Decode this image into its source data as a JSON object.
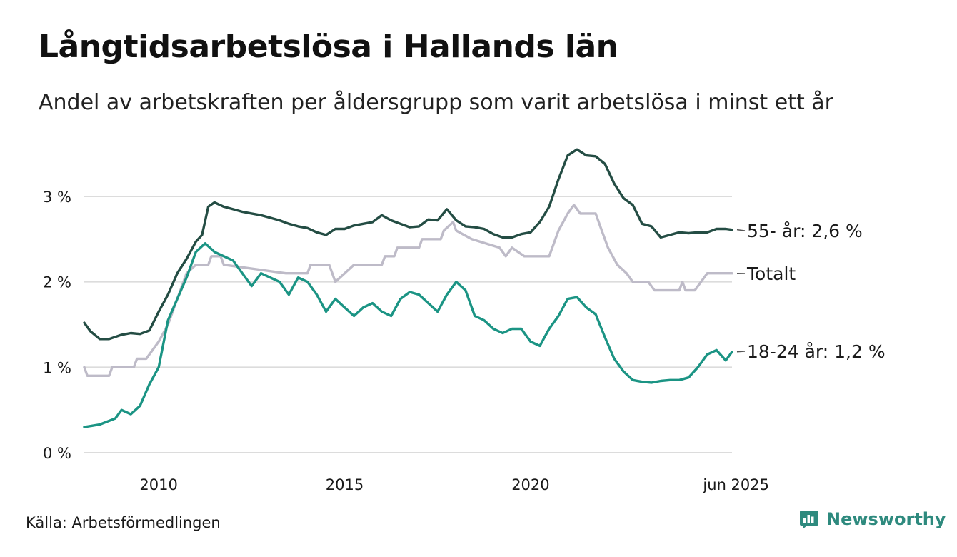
{
  "header": {
    "title": "Långtidsarbetslösa i Hallands län",
    "subtitle": "Andel av arbetskraften per åldersgrupp som varit arbetslösa i minst ett år"
  },
  "footer": {
    "source": "Källa: Arbetsförmedlingen",
    "brand": "Newsworthy",
    "brand_icon": "bar-chart-logo-icon"
  },
  "colors": {
    "s55": "#244d44",
    "total": "#bebbc8",
    "s1824": "#1b9484",
    "grid": "#dcdcdc",
    "brand": "#2e8a7e"
  },
  "chart_data": {
    "type": "line",
    "title": "Långtidsarbetslösa i Hallands län",
    "subtitle": "Andel av arbetskraften per åldersgrupp som varit arbetslösa i minst ett år",
    "xlabel": "",
    "ylabel": "",
    "x_range": [
      "2008-01",
      "2025-06"
    ],
    "x_ticks": [
      {
        "x": "2010-01",
        "label": "2010"
      },
      {
        "x": "2015-01",
        "label": "2015"
      },
      {
        "x": "2020-01",
        "label": "2020"
      },
      {
        "x": "2025-06",
        "label": "jun 2025"
      }
    ],
    "y_range": [
      0,
      3.8
    ],
    "y_ticks": [
      {
        "value": 0,
        "label": "0 %"
      },
      {
        "value": 1,
        "label": "1 %"
      },
      {
        "value": 2,
        "label": "2 %"
      },
      {
        "value": 3,
        "label": "3 %"
      }
    ],
    "grid": true,
    "series": [
      {
        "name": "55- år",
        "color": "#244d44",
        "end_label": "55- år: 2,6 %",
        "points": [
          [
            "2008-01",
            1.52
          ],
          [
            "2008-03",
            1.42
          ],
          [
            "2008-06",
            1.33
          ],
          [
            "2008-09",
            1.33
          ],
          [
            "2009-01",
            1.38
          ],
          [
            "2009-04",
            1.4
          ],
          [
            "2009-07",
            1.39
          ],
          [
            "2009-10",
            1.43
          ],
          [
            "2010-01",
            1.65
          ],
          [
            "2010-04",
            1.85
          ],
          [
            "2010-07",
            2.1
          ],
          [
            "2010-10",
            2.27
          ],
          [
            "2011-01",
            2.47
          ],
          [
            "2011-03",
            2.55
          ],
          [
            "2011-05",
            2.88
          ],
          [
            "2011-07",
            2.93
          ],
          [
            "2011-10",
            2.88
          ],
          [
            "2012-01",
            2.85
          ],
          [
            "2012-04",
            2.82
          ],
          [
            "2012-07",
            2.8
          ],
          [
            "2012-10",
            2.78
          ],
          [
            "2013-01",
            2.75
          ],
          [
            "2013-04",
            2.72
          ],
          [
            "2013-07",
            2.68
          ],
          [
            "2013-10",
            2.65
          ],
          [
            "2014-01",
            2.63
          ],
          [
            "2014-04",
            2.58
          ],
          [
            "2014-07",
            2.55
          ],
          [
            "2014-10",
            2.62
          ],
          [
            "2015-01",
            2.62
          ],
          [
            "2015-04",
            2.66
          ],
          [
            "2015-07",
            2.68
          ],
          [
            "2015-10",
            2.7
          ],
          [
            "2016-01",
            2.78
          ],
          [
            "2016-04",
            2.72
          ],
          [
            "2016-07",
            2.68
          ],
          [
            "2016-10",
            2.64
          ],
          [
            "2017-01",
            2.65
          ],
          [
            "2017-04",
            2.73
          ],
          [
            "2017-07",
            2.72
          ],
          [
            "2017-10",
            2.85
          ],
          [
            "2018-01",
            2.72
          ],
          [
            "2018-04",
            2.65
          ],
          [
            "2018-07",
            2.64
          ],
          [
            "2018-10",
            2.62
          ],
          [
            "2019-01",
            2.56
          ],
          [
            "2019-04",
            2.52
          ],
          [
            "2019-07",
            2.52
          ],
          [
            "2019-10",
            2.56
          ],
          [
            "2020-01",
            2.58
          ],
          [
            "2020-04",
            2.7
          ],
          [
            "2020-07",
            2.88
          ],
          [
            "2020-10",
            3.2
          ],
          [
            "2021-01",
            3.48
          ],
          [
            "2021-04",
            3.55
          ],
          [
            "2021-07",
            3.48
          ],
          [
            "2021-10",
            3.47
          ],
          [
            "2022-01",
            3.38
          ],
          [
            "2022-04",
            3.15
          ],
          [
            "2022-07",
            2.98
          ],
          [
            "2022-10",
            2.9
          ],
          [
            "2023-01",
            2.68
          ],
          [
            "2023-04",
            2.65
          ],
          [
            "2023-07",
            2.52
          ],
          [
            "2023-10",
            2.55
          ],
          [
            "2024-01",
            2.58
          ],
          [
            "2024-04",
            2.57
          ],
          [
            "2024-07",
            2.58
          ],
          [
            "2024-10",
            2.58
          ],
          [
            "2025-01",
            2.62
          ],
          [
            "2025-04",
            2.62
          ],
          [
            "2025-06",
            2.61
          ]
        ]
      },
      {
        "name": "Totalt",
        "color": "#bebbc8",
        "end_label": "Totalt",
        "points": [
          [
            "2008-01",
            1.0
          ],
          [
            "2008-02",
            0.9
          ],
          [
            "2008-09",
            0.9
          ],
          [
            "2008-10",
            1.0
          ],
          [
            "2009-05",
            1.0
          ],
          [
            "2009-06",
            1.1
          ],
          [
            "2009-09",
            1.1
          ],
          [
            "2010-01",
            1.3
          ],
          [
            "2010-04",
            1.5
          ],
          [
            "2010-07",
            1.8
          ],
          [
            "2010-10",
            2.1
          ],
          [
            "2011-01",
            2.2
          ],
          [
            "2011-05",
            2.2
          ],
          [
            "2011-06",
            2.3
          ],
          [
            "2011-09",
            2.3
          ],
          [
            "2011-10",
            2.2
          ],
          [
            "2013-06",
            2.1
          ],
          [
            "2014-01",
            2.1
          ],
          [
            "2014-02",
            2.2
          ],
          [
            "2014-08",
            2.2
          ],
          [
            "2014-09",
            2.1
          ],
          [
            "2014-10",
            2.0
          ],
          [
            "2015-01",
            2.1
          ],
          [
            "2015-04",
            2.2
          ],
          [
            "2016-01",
            2.2
          ],
          [
            "2016-02",
            2.3
          ],
          [
            "2016-05",
            2.3
          ],
          [
            "2016-06",
            2.4
          ],
          [
            "2017-01",
            2.4
          ],
          [
            "2017-02",
            2.5
          ],
          [
            "2017-08",
            2.5
          ],
          [
            "2017-09",
            2.6
          ],
          [
            "2017-12",
            2.7
          ],
          [
            "2018-01",
            2.6
          ],
          [
            "2018-06",
            2.5
          ],
          [
            "2019-03",
            2.4
          ],
          [
            "2019-05",
            2.3
          ],
          [
            "2019-07",
            2.4
          ],
          [
            "2019-11",
            2.3
          ],
          [
            "2020-07",
            2.3
          ],
          [
            "2020-10",
            2.6
          ],
          [
            "2021-01",
            2.8
          ],
          [
            "2021-03",
            2.9
          ],
          [
            "2021-05",
            2.8
          ],
          [
            "2021-10",
            2.8
          ],
          [
            "2021-12",
            2.6
          ],
          [
            "2022-02",
            2.4
          ],
          [
            "2022-05",
            2.2
          ],
          [
            "2022-08",
            2.1
          ],
          [
            "2022-10",
            2.0
          ],
          [
            "2023-03",
            2.0
          ],
          [
            "2023-05",
            1.9
          ],
          [
            "2024-01",
            1.9
          ],
          [
            "2024-02",
            2.0
          ],
          [
            "2024-03",
            1.9
          ],
          [
            "2024-06",
            1.9
          ],
          [
            "2024-08",
            2.0
          ],
          [
            "2024-10",
            2.1
          ],
          [
            "2025-06",
            2.1
          ]
        ]
      },
      {
        "name": "18-24 år",
        "color": "#1b9484",
        "end_label": "18-24 år: 1,2 %",
        "points": [
          [
            "2008-01",
            0.3
          ],
          [
            "2008-06",
            0.33
          ],
          [
            "2008-11",
            0.4
          ],
          [
            "2009-01",
            0.5
          ],
          [
            "2009-04",
            0.45
          ],
          [
            "2009-07",
            0.55
          ],
          [
            "2009-10",
            0.8
          ],
          [
            "2010-01",
            1.0
          ],
          [
            "2010-04",
            1.55
          ],
          [
            "2010-07",
            1.8
          ],
          [
            "2010-10",
            2.05
          ],
          [
            "2011-01",
            2.35
          ],
          [
            "2011-04",
            2.45
          ],
          [
            "2011-07",
            2.35
          ],
          [
            "2011-10",
            2.3
          ],
          [
            "2012-01",
            2.25
          ],
          [
            "2012-04",
            2.1
          ],
          [
            "2012-07",
            1.95
          ],
          [
            "2012-10",
            2.1
          ],
          [
            "2013-01",
            2.05
          ],
          [
            "2013-04",
            2.0
          ],
          [
            "2013-07",
            1.85
          ],
          [
            "2013-10",
            2.05
          ],
          [
            "2014-01",
            2.0
          ],
          [
            "2014-04",
            1.85
          ],
          [
            "2014-07",
            1.65
          ],
          [
            "2014-10",
            1.8
          ],
          [
            "2015-01",
            1.7
          ],
          [
            "2015-04",
            1.6
          ],
          [
            "2015-07",
            1.7
          ],
          [
            "2015-10",
            1.75
          ],
          [
            "2016-01",
            1.65
          ],
          [
            "2016-04",
            1.6
          ],
          [
            "2016-07",
            1.8
          ],
          [
            "2016-10",
            1.88
          ],
          [
            "2017-01",
            1.85
          ],
          [
            "2017-04",
            1.75
          ],
          [
            "2017-07",
            1.65
          ],
          [
            "2017-10",
            1.85
          ],
          [
            "2018-01",
            2.0
          ],
          [
            "2018-04",
            1.9
          ],
          [
            "2018-07",
            1.6
          ],
          [
            "2018-10",
            1.55
          ],
          [
            "2019-01",
            1.45
          ],
          [
            "2019-04",
            1.4
          ],
          [
            "2019-07",
            1.45
          ],
          [
            "2019-10",
            1.45
          ],
          [
            "2020-01",
            1.3
          ],
          [
            "2020-04",
            1.25
          ],
          [
            "2020-07",
            1.45
          ],
          [
            "2020-10",
            1.6
          ],
          [
            "2021-01",
            1.8
          ],
          [
            "2021-04",
            1.82
          ],
          [
            "2021-07",
            1.7
          ],
          [
            "2021-10",
            1.62
          ],
          [
            "2022-01",
            1.35
          ],
          [
            "2022-04",
            1.1
          ],
          [
            "2022-07",
            0.95
          ],
          [
            "2022-10",
            0.85
          ],
          [
            "2023-01",
            0.83
          ],
          [
            "2023-04",
            0.82
          ],
          [
            "2023-07",
            0.84
          ],
          [
            "2023-10",
            0.85
          ],
          [
            "2024-01",
            0.85
          ],
          [
            "2024-04",
            0.88
          ],
          [
            "2024-07",
            1.0
          ],
          [
            "2024-10",
            1.15
          ],
          [
            "2025-01",
            1.2
          ],
          [
            "2025-04",
            1.08
          ],
          [
            "2025-06",
            1.18
          ]
        ]
      }
    ]
  }
}
